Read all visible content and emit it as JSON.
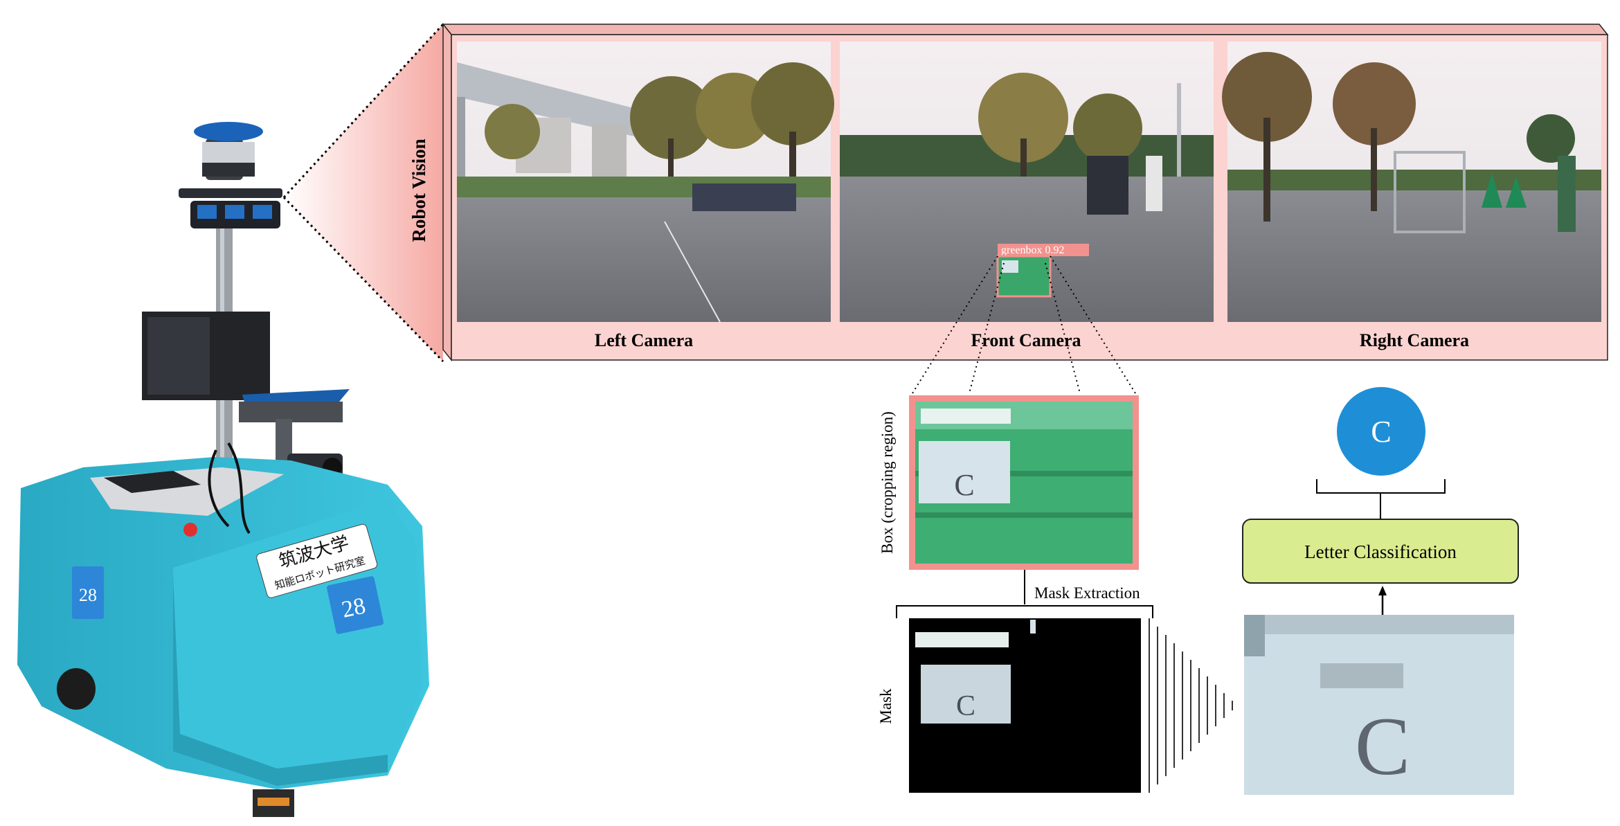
{
  "panel": {
    "title": "Robot Vision",
    "cameras": [
      {
        "id": "left",
        "label": "Left Camera"
      },
      {
        "id": "front",
        "label": "Front Camera"
      },
      {
        "id": "right",
        "label": "Right Camera"
      }
    ]
  },
  "detection": {
    "label": "greenbox 0.92"
  },
  "pipeline": {
    "box_label": "Box (cropping region)",
    "mask_extraction": "Mask Extraction",
    "mask_label": "Mask",
    "classifier": "Letter Classification",
    "result_letter": "C",
    "crop_letter": "C"
  },
  "robot": {
    "sign_line1": "筑波大学",
    "sign_line2": "知能ロボット研究室",
    "number": "28"
  },
  "colors": {
    "panel_border": "#f4a6a2",
    "panel_fill": "#fbd3d0",
    "robot_body": "#35bcd6",
    "classifier_fill": "#d9ec8f",
    "result_circle": "#1e8fd6",
    "green_box": "#3aa66a"
  }
}
